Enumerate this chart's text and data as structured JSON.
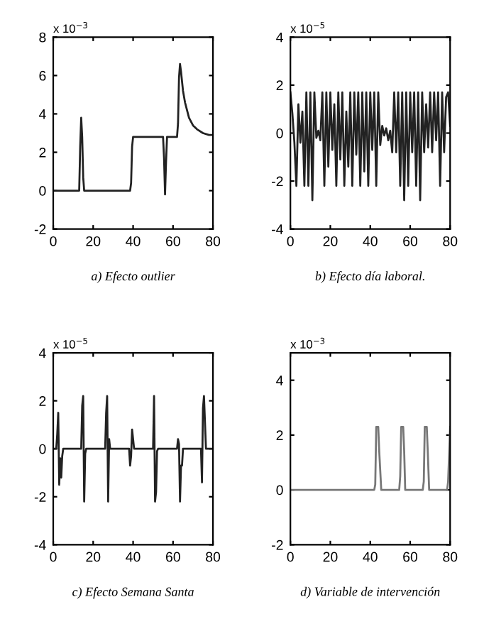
{
  "chart_data": [
    {
      "type": "line",
      "title": "a) Efecto outlier",
      "annotations": [
        "x 10$^{−3}$"
      ],
      "xlim": [
        0,
        80
      ],
      "xticks": [
        0,
        20,
        40,
        60,
        80
      ],
      "ylim": [
        -2,
        8
      ],
      "yticks": [
        -2,
        0,
        2,
        4,
        6,
        8
      ],
      "grid": false,
      "series": [
        {
          "color": "#222222",
          "x": [
            0,
            13,
            13.5,
            14,
            14.5,
            15,
            15.5,
            38.5,
            39,
            39.5,
            40,
            55,
            55.5,
            56,
            56.5,
            57,
            57.5,
            62,
            62.5,
            63,
            63.5,
            64,
            65,
            66,
            67,
            68,
            70,
            72,
            75,
            78,
            80
          ],
          "values": [
            0,
            0,
            2.3,
            3.8,
            2.8,
            0.7,
            0,
            0,
            0.4,
            2.3,
            2.8,
            2.8,
            1.7,
            -0.2,
            1.5,
            2.8,
            2.8,
            2.8,
            3.5,
            5.9,
            6.6,
            6.2,
            5.2,
            4.6,
            4.2,
            3.8,
            3.4,
            3.2,
            3.0,
            2.9,
            2.9
          ]
        }
      ]
    },
    {
      "type": "line",
      "title": "b) Efecto día laboral.",
      "annotations": [
        "x 10$^{−5}$"
      ],
      "xlim": [
        0,
        80
      ],
      "xticks": [
        0,
        20,
        40,
        60,
        80
      ],
      "ylim": [
        -4,
        4
      ],
      "yticks": [
        -4,
        -2,
        0,
        2,
        4
      ],
      "grid": false,
      "series": [
        {
          "color": "#222222",
          "x": [
            0,
            1,
            2,
            3,
            4,
            5,
            6,
            7,
            8,
            9,
            10,
            11,
            12,
            13,
            14,
            15,
            16,
            17,
            18,
            19,
            20,
            21,
            22,
            23,
            24,
            25,
            26,
            27,
            28,
            29,
            30,
            31,
            32,
            33,
            34,
            35,
            36,
            37,
            38,
            39,
            40,
            41,
            42,
            43,
            44,
            45,
            46,
            47,
            48,
            49,
            50,
            51,
            52,
            53,
            54,
            55,
            56,
            57,
            58,
            59,
            60,
            61,
            62,
            63,
            64,
            65,
            66,
            67,
            68,
            69,
            70,
            71,
            72,
            73,
            74,
            75,
            76,
            77,
            78,
            79,
            80
          ],
          "values": [
            1.7,
            0.8,
            -0.4,
            -2.2,
            1.2,
            -0.4,
            0.9,
            -2.2,
            1.7,
            -2.2,
            1.7,
            -2.8,
            1.7,
            -0.2,
            0.1,
            -0.3,
            1.7,
            -2.2,
            1.7,
            -1.4,
            1.7,
            -0.7,
            1.2,
            -2.2,
            1.7,
            -1.1,
            1.7,
            -2.2,
            0.9,
            -1.4,
            1.7,
            -2.2,
            1.7,
            -0.9,
            1.7,
            -2.2,
            1.7,
            -1.6,
            1.7,
            -2.2,
            1.7,
            -0.7,
            1.7,
            -2.2,
            1.7,
            -0.5,
            0.3,
            -0.1,
            0.2,
            -0.3,
            0.1,
            -0.8,
            1.7,
            -0.8,
            1.7,
            -2.2,
            1.7,
            -2.8,
            1.7,
            -2.2,
            1.7,
            -0.8,
            1.7,
            -2.2,
            1.7,
            -2.8,
            1.7,
            -0.8,
            1.2,
            -0.6,
            1.7,
            -0.8,
            1.7,
            -0.3,
            1.7,
            -2.2,
            1.7,
            -0.8,
            1.5,
            1.7,
            0.3
          ]
        }
      ]
    },
    {
      "type": "line",
      "title": "c) Efecto Semana Santa",
      "annotations": [
        "x 10$^{−5}$"
      ],
      "xlim": [
        0,
        80
      ],
      "xticks": [
        0,
        20,
        40,
        60,
        80
      ],
      "ylim": [
        -4,
        4
      ],
      "yticks": [
        -4,
        -2,
        0,
        2,
        4
      ],
      "grid": false,
      "series": [
        {
          "color": "#222222",
          "x": [
            0,
            1.5,
            2,
            2.5,
            3,
            3.5,
            4,
            4.5,
            5,
            14,
            14.5,
            15,
            15.5,
            16,
            16.5,
            17,
            26,
            26.5,
            27,
            27.5,
            28,
            28.5,
            29,
            38,
            38.5,
            39,
            39.5,
            40,
            40.5,
            41,
            50,
            50.5,
            51,
            51.5,
            52,
            52.5,
            53,
            62,
            62.5,
            63,
            63.5,
            64,
            64.5,
            65,
            74,
            74.5,
            75,
            75.5,
            76,
            76.5,
            77,
            80
          ],
          "values": [
            0,
            0,
            0.6,
            1.5,
            -1.5,
            -0.4,
            -1.2,
            -0.3,
            0,
            0,
            1.8,
            2.2,
            -2.2,
            -0.2,
            0,
            0,
            0,
            1.5,
            2.2,
            -2.2,
            0.4,
            0,
            0,
            0,
            -0.7,
            -0.3,
            0.8,
            0.4,
            0,
            0,
            0,
            2.2,
            -2.2,
            -1.8,
            -0.1,
            0,
            0,
            0,
            0.4,
            0.2,
            -2.2,
            -0.7,
            -0.7,
            0,
            0,
            -1.4,
            1.7,
            2.2,
            1.1,
            0,
            0,
            0
          ]
        }
      ]
    },
    {
      "type": "line",
      "title": "d) Variable de intervención",
      "annotations": [
        "x 10$^{−3}$"
      ],
      "xlim": [
        0,
        80
      ],
      "xticks": [
        0,
        20,
        40,
        60,
        80
      ],
      "ylim": [
        -2,
        5
      ],
      "yticks": [
        -2,
        0,
        2,
        4
      ],
      "grid": false,
      "series": [
        {
          "color": "#777777",
          "x": [
            0,
            42,
            42.5,
            43,
            44,
            44.5,
            45.5,
            54.5,
            55,
            55.5,
            56.5,
            57,
            57.5,
            66.3,
            66.8,
            67.3,
            68.3,
            68.8,
            69.5,
            78.5,
            79,
            80
          ],
          "values": [
            0,
            0,
            0.2,
            2.3,
            2.3,
            1.4,
            0,
            0,
            0.5,
            2.3,
            2.3,
            1.4,
            0,
            0,
            0.3,
            2.3,
            2.3,
            1.4,
            0,
            0,
            0.3,
            2.3
          ]
        }
      ]
    }
  ]
}
